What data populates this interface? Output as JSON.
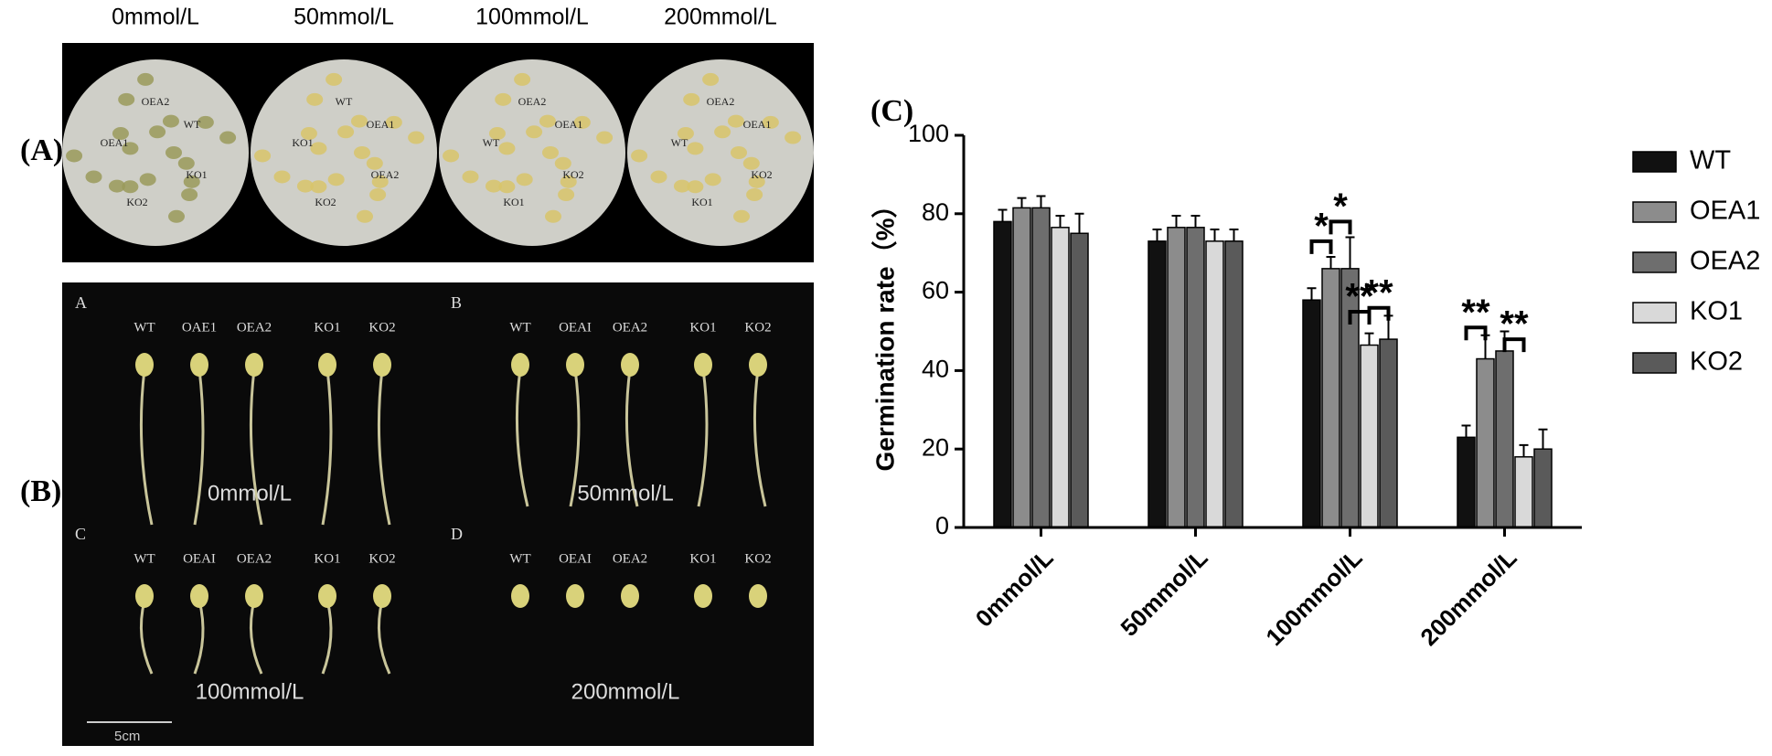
{
  "panel_a": {
    "label": "(A)",
    "concentrations": [
      "0mmol/L",
      "50mmol/L",
      "100mmol/L",
      "200mmol/L"
    ],
    "dishes": [
      [
        "OEA2",
        "WT",
        "OEA1",
        "KO1",
        "KO2"
      ],
      [
        "WT",
        "OEA1",
        "KO1",
        "OEA2",
        "KO2"
      ],
      [
        "OEA2",
        "OEA1",
        "WT",
        "KO2",
        "KO1"
      ],
      [
        "OEA2",
        "OEA1",
        "WT",
        "KO2",
        "KO1"
      ]
    ]
  },
  "panel_b": {
    "label": "(B)",
    "scale_bar": "5cm",
    "subpanels": [
      {
        "letter": "A",
        "genotypes": [
          "WT",
          "OAE1",
          "OEA2",
          "KO1",
          "KO2"
        ],
        "caption": "0mmol/L"
      },
      {
        "letter": "B",
        "genotypes": [
          "WT",
          "OEAI",
          "OEA2",
          "KO1",
          "KO2"
        ],
        "caption": "50mmol/L"
      },
      {
        "letter": "C",
        "genotypes": [
          "WT",
          "OEAI",
          "OEA2",
          "KO1",
          "KO2"
        ],
        "caption": "100mmol/L"
      },
      {
        "letter": "D",
        "genotypes": [
          "WT",
          "OEAI",
          "OEA2",
          "KO1",
          "KO2"
        ],
        "caption": "200mmol/L"
      }
    ]
  },
  "chart_data": {
    "type": "bar",
    "panel_label": "(C)",
    "ylabel": "Germination rate（%）",
    "categories": [
      "0mmol/L",
      "50mmol/L",
      "100mmol/L",
      "200mmol/L"
    ],
    "series": [
      {
        "name": "WT",
        "color": "#111111",
        "values": [
          78,
          73,
          58,
          23
        ],
        "errors": [
          3,
          3,
          3,
          3
        ]
      },
      {
        "name": "OEA1",
        "color": "#8c8c8c",
        "values": [
          81.5,
          76.5,
          66,
          43
        ],
        "errors": [
          2.5,
          3,
          3,
          6
        ]
      },
      {
        "name": "OEA2",
        "color": "#6e6e6e",
        "values": [
          81.5,
          76.5,
          66,
          45
        ],
        "errors": [
          3,
          3,
          8,
          5
        ]
      },
      {
        "name": "KO1",
        "color": "#d9d9d9",
        "values": [
          76.5,
          73,
          46.5,
          18
        ],
        "errors": [
          3,
          3,
          3,
          3
        ]
      },
      {
        "name": "KO2",
        "color": "#5a5a5a",
        "values": [
          75,
          73,
          48,
          20
        ],
        "errors": [
          5,
          3,
          6,
          5
        ]
      }
    ],
    "annotations": [
      "*",
      "*",
      "**",
      "**",
      "**",
      "**"
    ],
    "ylim": [
      0,
      100
    ],
    "yticks": [
      0,
      20,
      40,
      60,
      80,
      100
    ],
    "legend": "right"
  }
}
